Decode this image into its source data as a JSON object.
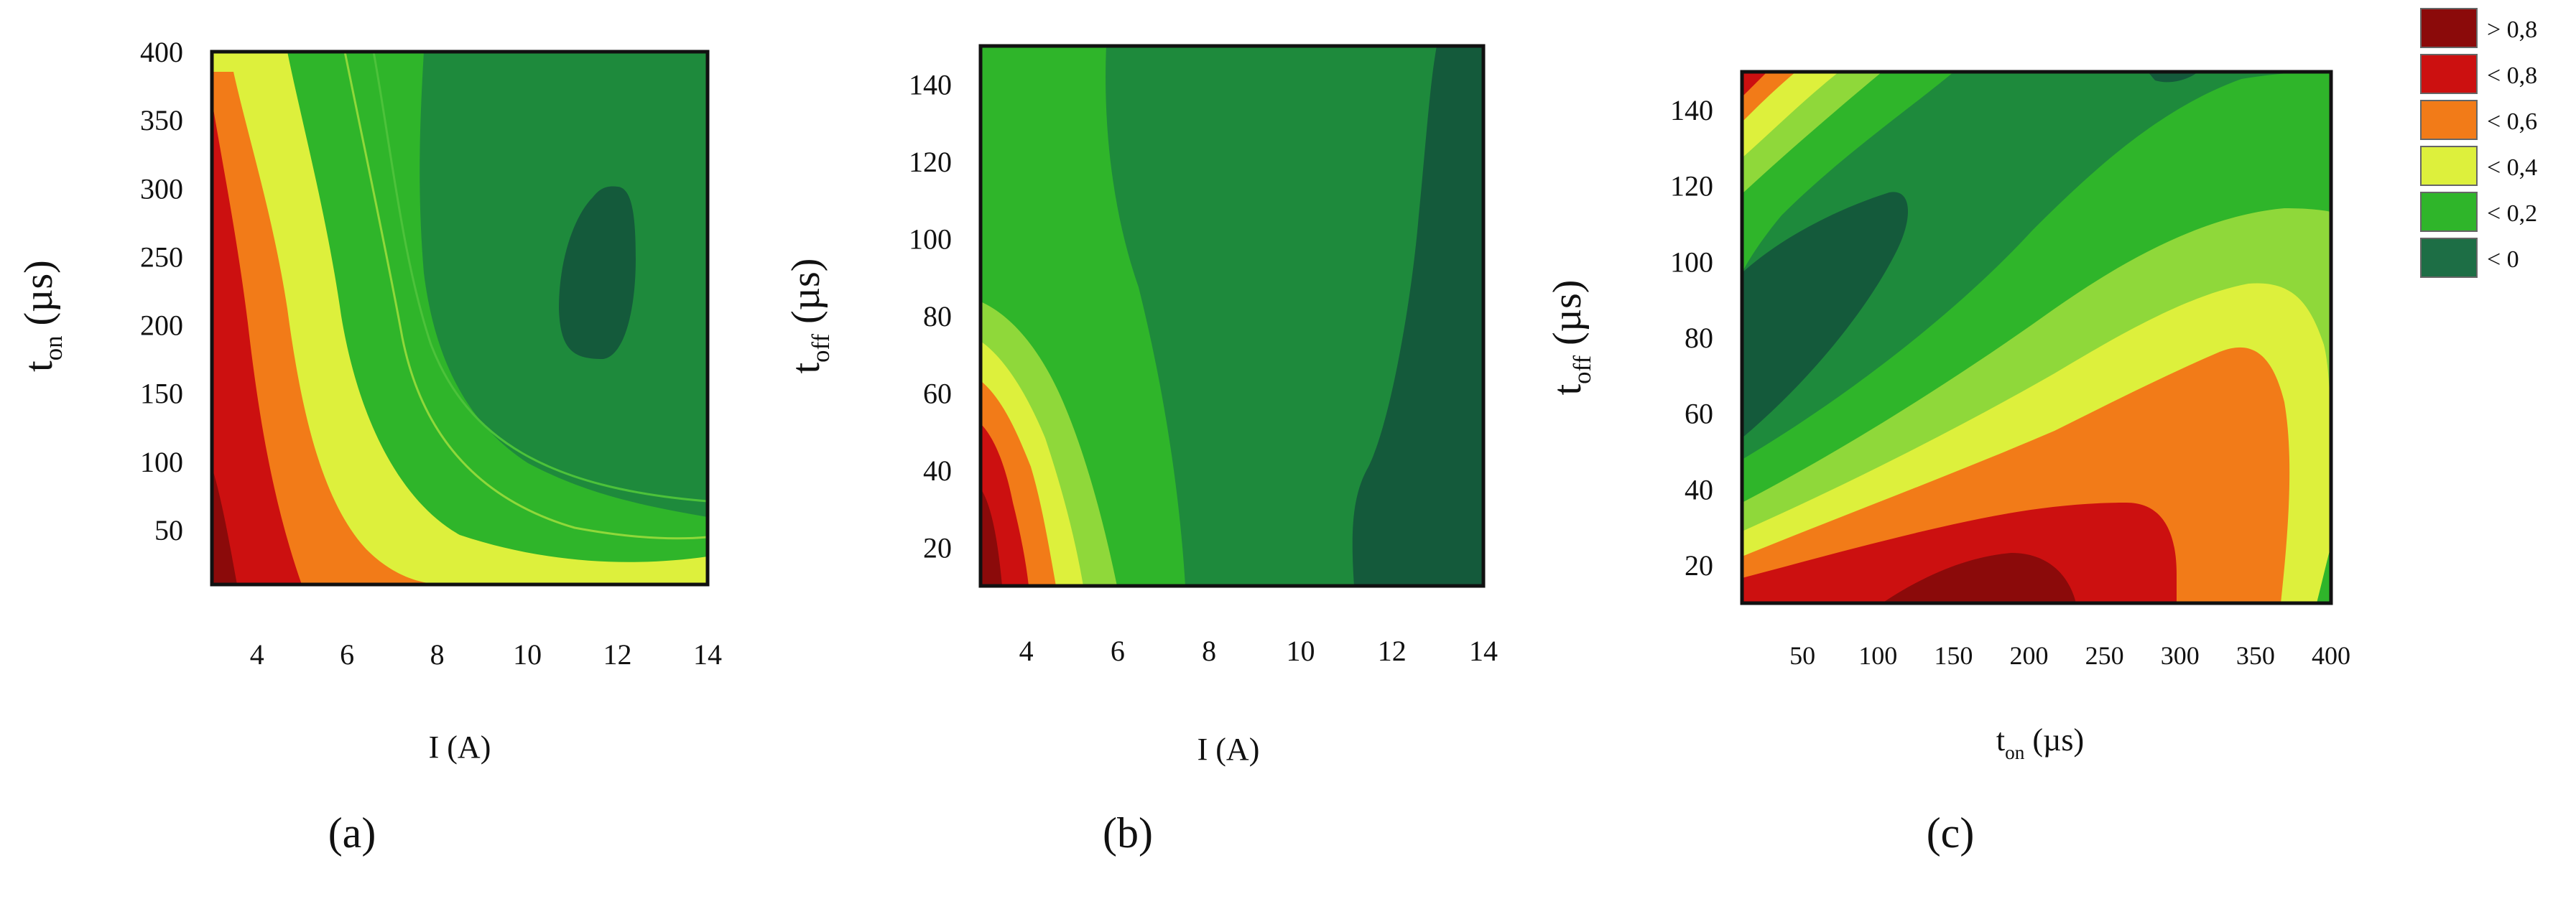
{
  "colors": {
    "gt08": "#8b0a0a",
    "lt08": "#cc1010",
    "lt06": "#f27b18",
    "lt04": "#ddf03c",
    "lt02": "#2fb52a",
    "lt0": "#1d6e45",
    "lt0_deep": "#145a3b",
    "lt0_mid": "#1e8a3c"
  },
  "legend": [
    {
      "label": "> 0,8",
      "color": "#8b0a0a"
    },
    {
      "label": "< 0,8",
      "color": "#cc1010"
    },
    {
      "label": "< 0,6",
      "color": "#f27b18"
    },
    {
      "label": "< 0,4",
      "color": "#ddf03c"
    },
    {
      "label": "< 0,2",
      "color": "#2fb52a"
    },
    {
      "label": "< 0",
      "color": "#1d6e45"
    }
  ],
  "chart_data": [
    {
      "type": "heatmap",
      "panel": "(a)",
      "xlabel": {
        "main": "I (A)",
        "sub": ""
      },
      "ylabel": {
        "main": "t",
        "sub": "on",
        "unit": " (µs)"
      },
      "x_ticks": [
        4,
        6,
        8,
        10,
        12,
        14
      ],
      "y_ticks": [
        50,
        100,
        150,
        200,
        250,
        300,
        350,
        400
      ],
      "xlim": [
        3,
        14
      ],
      "ylim": [
        10,
        400
      ]
    },
    {
      "type": "heatmap",
      "panel": "(b)",
      "xlabel": {
        "main": "I (A)",
        "sub": ""
      },
      "ylabel": {
        "main": "t",
        "sub": "off",
        "unit": " (µs)"
      },
      "x_ticks": [
        4,
        6,
        8,
        10,
        12,
        14
      ],
      "y_ticks": [
        20,
        40,
        60,
        80,
        100,
        120,
        140
      ],
      "xlim": [
        3,
        14
      ],
      "ylim": [
        10,
        150
      ]
    },
    {
      "type": "heatmap",
      "panel": "(c)",
      "xlabel": {
        "main": "t",
        "sub": "on",
        "unit": " (µs)"
      },
      "ylabel": {
        "main": "t",
        "sub": "off",
        "unit": " (µs)"
      },
      "x_ticks": [
        50,
        100,
        150,
        200,
        250,
        300,
        350,
        400
      ],
      "y_ticks": [
        20,
        40,
        60,
        80,
        100,
        120,
        140
      ],
      "xlim": [
        10,
        400
      ],
      "ylim": [
        10,
        150
      ]
    }
  ]
}
